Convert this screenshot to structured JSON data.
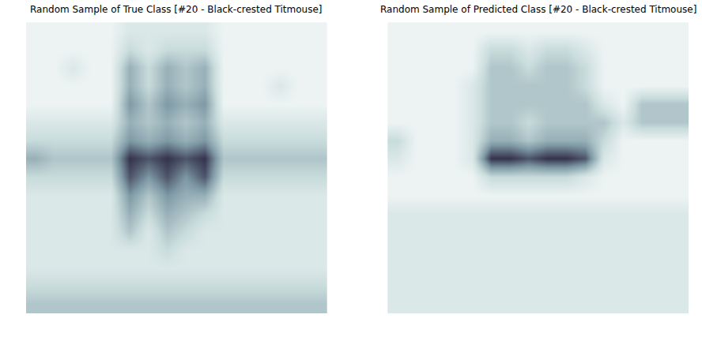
{
  "chart_data": [
    {
      "type": "heatmap",
      "title": "Random Sample of True Class [#20 - Black-crested Titmouse]",
      "tick_labels": false,
      "zlim": [
        0,
        1
      ],
      "cells": [
        [
          0.1,
          0.1,
          0.1,
          0.1,
          0.1,
          0.2,
          0.2,
          0.2,
          0.2,
          0.2,
          0.1,
          0.1,
          0.1,
          0.1,
          0.1,
          0.1
        ],
        [
          0.1,
          0.1,
          0.1,
          0.1,
          0.1,
          0.3,
          0.2,
          0.3,
          0.3,
          0.3,
          0.1,
          0.1,
          0.1,
          0.1,
          0.1,
          0.1
        ],
        [
          0.1,
          0.1,
          0.2,
          0.1,
          0.1,
          0.5,
          0.3,
          0.5,
          0.4,
          0.5,
          0.1,
          0.1,
          0.1,
          0.1,
          0.1,
          0.1
        ],
        [
          0.1,
          0.1,
          0.1,
          0.1,
          0.1,
          0.5,
          0.3,
          0.5,
          0.4,
          0.5,
          0.1,
          0.1,
          0.1,
          0.2,
          0.1,
          0.1
        ],
        [
          0.1,
          0.1,
          0.1,
          0.1,
          0.1,
          0.6,
          0.4,
          0.6,
          0.5,
          0.6,
          0.1,
          0.1,
          0.1,
          0.1,
          0.1,
          0.1
        ],
        [
          0.2,
          0.2,
          0.2,
          0.2,
          0.2,
          0.5,
          0.4,
          0.5,
          0.4,
          0.5,
          0.2,
          0.2,
          0.2,
          0.2,
          0.2,
          0.2
        ],
        [
          0.3,
          0.3,
          0.3,
          0.3,
          0.3,
          0.6,
          0.5,
          0.6,
          0.5,
          0.6,
          0.3,
          0.3,
          0.3,
          0.3,
          0.3,
          0.3
        ],
        [
          0.5,
          0.4,
          0.4,
          0.4,
          0.4,
          0.9,
          0.8,
          0.9,
          0.8,
          0.9,
          0.4,
          0.4,
          0.4,
          0.4,
          0.4,
          0.4
        ],
        [
          0.3,
          0.3,
          0.3,
          0.3,
          0.3,
          0.8,
          0.6,
          0.8,
          0.6,
          0.8,
          0.3,
          0.3,
          0.3,
          0.3,
          0.3,
          0.3
        ],
        [
          0.2,
          0.2,
          0.2,
          0.2,
          0.2,
          0.6,
          0.4,
          0.6,
          0.5,
          0.5,
          0.2,
          0.2,
          0.2,
          0.2,
          0.2,
          0.2
        ],
        [
          0.2,
          0.2,
          0.2,
          0.2,
          0.2,
          0.5,
          0.3,
          0.5,
          0.4,
          0.3,
          0.2,
          0.2,
          0.2,
          0.2,
          0.2,
          0.2
        ],
        [
          0.2,
          0.2,
          0.2,
          0.2,
          0.2,
          0.4,
          0.2,
          0.4,
          0.3,
          0.2,
          0.2,
          0.2,
          0.2,
          0.2,
          0.2,
          0.2
        ],
        [
          0.2,
          0.2,
          0.2,
          0.2,
          0.2,
          0.2,
          0.2,
          0.3,
          0.2,
          0.2,
          0.2,
          0.2,
          0.2,
          0.2,
          0.2,
          0.2
        ],
        [
          0.2,
          0.2,
          0.2,
          0.2,
          0.2,
          0.2,
          0.2,
          0.2,
          0.2,
          0.2,
          0.2,
          0.2,
          0.2,
          0.2,
          0.2,
          0.2
        ],
        [
          0.3,
          0.3,
          0.3,
          0.3,
          0.3,
          0.3,
          0.3,
          0.3,
          0.3,
          0.3,
          0.3,
          0.3,
          0.3,
          0.3,
          0.3,
          0.3
        ],
        [
          0.4,
          0.4,
          0.4,
          0.4,
          0.4,
          0.4,
          0.4,
          0.4,
          0.4,
          0.4,
          0.4,
          0.4,
          0.4,
          0.4,
          0.4,
          0.4
        ]
      ]
    },
    {
      "type": "heatmap",
      "title": "Random Sample of Predicted Class [#20 - Black-crested Titmouse]",
      "tick_labels": false,
      "zlim": [
        0,
        1
      ],
      "cells": [
        [
          0.1,
          0.1,
          0.1,
          0.1,
          0.1,
          0.1,
          0.1,
          0.1,
          0.1,
          0.1,
          0.1,
          0.1,
          0.1,
          0.1,
          0.1,
          0.1
        ],
        [
          0.1,
          0.1,
          0.1,
          0.1,
          0.1,
          0.3,
          0.3,
          0.2,
          0.3,
          0.3,
          0.2,
          0.1,
          0.1,
          0.1,
          0.1,
          0.1
        ],
        [
          0.1,
          0.1,
          0.1,
          0.1,
          0.1,
          0.4,
          0.4,
          0.3,
          0.4,
          0.4,
          0.3,
          0.1,
          0.1,
          0.1,
          0.1,
          0.1
        ],
        [
          0.1,
          0.1,
          0.1,
          0.1,
          0.2,
          0.4,
          0.4,
          0.4,
          0.4,
          0.4,
          0.3,
          0.1,
          0.1,
          0.1,
          0.1,
          0.1
        ],
        [
          0.1,
          0.1,
          0.1,
          0.1,
          0.2,
          0.4,
          0.4,
          0.4,
          0.4,
          0.4,
          0.4,
          0.2,
          0.1,
          0.4,
          0.4,
          0.4
        ],
        [
          0.1,
          0.1,
          0.1,
          0.1,
          0.2,
          0.4,
          0.4,
          0.3,
          0.4,
          0.4,
          0.4,
          0.4,
          0.2,
          0.4,
          0.4,
          0.4
        ],
        [
          0.3,
          0.1,
          0.1,
          0.1,
          0.2,
          0.5,
          0.5,
          0.4,
          0.5,
          0.5,
          0.5,
          0.3,
          0.1,
          0.1,
          0.1,
          0.1
        ],
        [
          0.2,
          0.1,
          0.1,
          0.1,
          0.2,
          0.9,
          0.9,
          0.8,
          0.9,
          0.9,
          0.8,
          0.2,
          0.1,
          0.1,
          0.1,
          0.1
        ],
        [
          0.1,
          0.1,
          0.1,
          0.1,
          0.1,
          0.3,
          0.3,
          0.3,
          0.3,
          0.3,
          0.2,
          0.1,
          0.1,
          0.1,
          0.1,
          0.1
        ],
        [
          0.1,
          0.1,
          0.1,
          0.1,
          0.1,
          0.1,
          0.1,
          0.1,
          0.1,
          0.1,
          0.1,
          0.1,
          0.1,
          0.1,
          0.1,
          0.1
        ],
        [
          0.2,
          0.2,
          0.2,
          0.2,
          0.2,
          0.2,
          0.2,
          0.2,
          0.2,
          0.2,
          0.2,
          0.2,
          0.2,
          0.2,
          0.2,
          0.2
        ],
        [
          0.2,
          0.2,
          0.2,
          0.2,
          0.2,
          0.2,
          0.2,
          0.2,
          0.2,
          0.2,
          0.2,
          0.2,
          0.2,
          0.2,
          0.2,
          0.2
        ],
        [
          0.2,
          0.2,
          0.2,
          0.2,
          0.2,
          0.2,
          0.2,
          0.2,
          0.2,
          0.2,
          0.2,
          0.2,
          0.2,
          0.2,
          0.2,
          0.2
        ],
        [
          0.2,
          0.2,
          0.2,
          0.2,
          0.2,
          0.2,
          0.2,
          0.2,
          0.2,
          0.2,
          0.2,
          0.2,
          0.2,
          0.2,
          0.2,
          0.2
        ],
        [
          0.2,
          0.2,
          0.2,
          0.2,
          0.2,
          0.2,
          0.2,
          0.2,
          0.2,
          0.2,
          0.2,
          0.2,
          0.2,
          0.2,
          0.2,
          0.2
        ],
        [
          0.2,
          0.2,
          0.2,
          0.2,
          0.2,
          0.2,
          0.2,
          0.2,
          0.2,
          0.2,
          0.2,
          0.2,
          0.2,
          0.2,
          0.2,
          0.2
        ]
      ]
    }
  ]
}
